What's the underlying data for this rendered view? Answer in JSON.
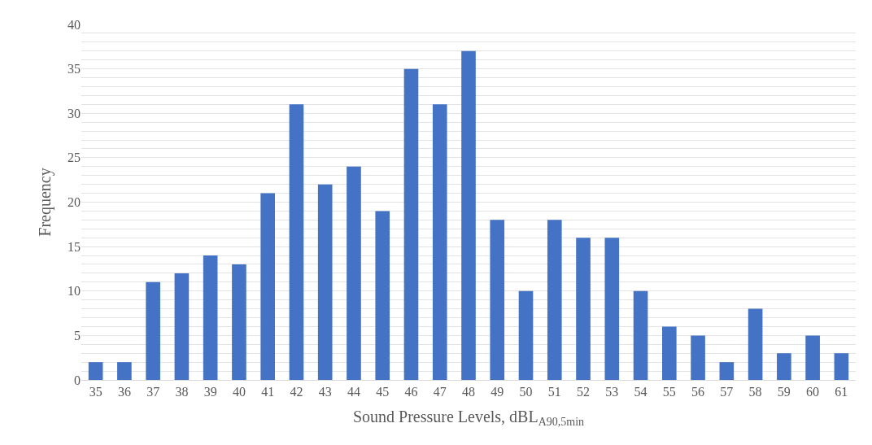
{
  "chart_data": {
    "type": "bar",
    "xlabel": "Sound Pressure Levels, dBL$_{A90,5min}$",
    "ylabel": "Frequency",
    "categories": [
      "35",
      "36",
      "37",
      "38",
      "39",
      "40",
      "41",
      "42",
      "43",
      "44",
      "45",
      "46",
      "47",
      "48",
      "49",
      "50",
      "51",
      "52",
      "53",
      "54",
      "55",
      "56",
      "57",
      "58",
      "59",
      "60",
      "61"
    ],
    "values": [
      2,
      2,
      11,
      12,
      14,
      13,
      21,
      31,
      22,
      24,
      19,
      35,
      31,
      37,
      18,
      10,
      18,
      16,
      16,
      10,
      6,
      5,
      2,
      8,
      3,
      5,
      3
    ],
    "color": "#4472c4",
    "ylim": [
      0,
      40
    ],
    "yticks": [
      0,
      {
        "value": 1,
        "label": null
      },
      {
        "value": 2,
        "label": null
      },
      {
        "value": 3,
        "label": null
      },
      {
        "value": 4,
        "label": null
      },
      5,
      {
        "value": 6,
        "label": null
      },
      {
        "value": 7,
        "label": null
      },
      {
        "value": 8,
        "label": null
      },
      {
        "value": 9,
        "label": null
      },
      10,
      {
        "value": 11,
        "label": null
      },
      {
        "value": 12,
        "label": null
      },
      {
        "value": 13,
        "label": null
      },
      {
        "value": 14,
        "label": null
      },
      15,
      {
        "value": 16,
        "label": null
      },
      {
        "value": 17,
        "label": null
      },
      {
        "value": 18,
        "label": null
      },
      {
        "value": 19,
        "label": null
      },
      20,
      {
        "value": 21,
        "label": null
      },
      {
        "value": 22,
        "label": null
      },
      {
        "value": 23,
        "label": null
      },
      {
        "value": 24,
        "label": null
      },
      25,
      {
        "value": 26,
        "label": null
      },
      {
        "value": 27,
        "label": null
      },
      {
        "value": 28,
        "label": null
      },
      {
        "value": 29,
        "label": null
      },
      30,
      {
        "value": 31,
        "label": null
      },
      {
        "value": 32,
        "label": null
      },
      {
        "value": 33,
        "label": null
      },
      {
        "value": 34,
        "label": null
      },
      35,
      {
        "value": 36,
        "label": null
      },
      {
        "value": 37,
        "label": null
      },
      {
        "value": 38,
        "label": null
      },
      {
        "value": 39,
        "label": null
      },
      40
    ],
    "grid": "y"
  }
}
